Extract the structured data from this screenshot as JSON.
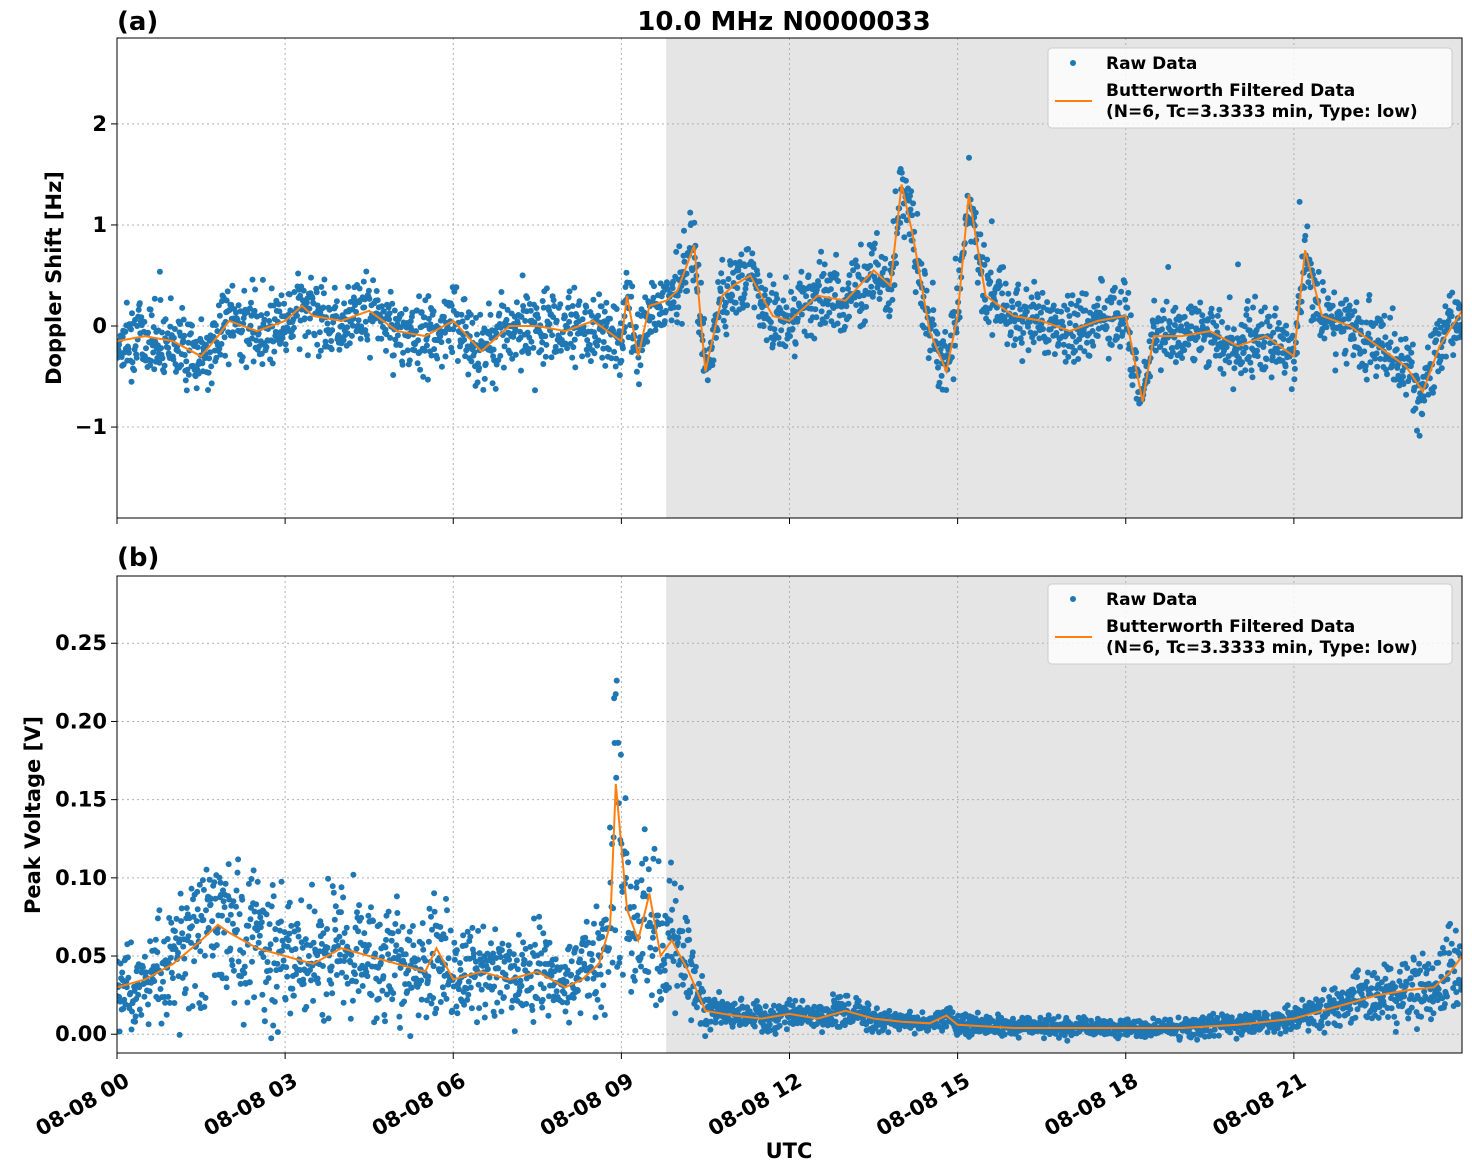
{
  "chart_data": [
    {
      "type": "scatter",
      "panel_label": "(a)",
      "title": "10.0 MHz N0000033",
      "ylabel": "Doppler Shift [Hz]",
      "xlabel": "",
      "xlim_hours": [
        0,
        24
      ],
      "ylim": [
        -1.9,
        2.85
      ],
      "yticks": [
        -1,
        0,
        1,
        2
      ],
      "ytick_labels": [
        "−1",
        "0",
        "1",
        "2"
      ],
      "grid": true,
      "legend_position": "top-right",
      "night_shading_hours": [
        9.8,
        24
      ],
      "series": [
        {
          "name": "Raw Data",
          "kind": "scatter",
          "color": "#1f77b4"
        },
        {
          "name": "Butterworth Filtered Data",
          "name_line2": "(N=6, Tc=3.3333 min, Type: low)",
          "kind": "line",
          "color": "#ff7f0e",
          "x_hours": [
            0,
            0.5,
            1,
            1.5,
            1.8,
            2,
            2.5,
            3,
            3.3,
            3.5,
            4,
            4.5,
            5,
            5.5,
            6,
            6.5,
            7,
            7.5,
            8,
            8.5,
            9,
            9.1,
            9.3,
            9.5,
            9.8,
            10,
            10.3,
            10.5,
            10.8,
            11,
            11.3,
            11.7,
            12,
            12.5,
            13,
            13.5,
            13.8,
            14,
            14.2,
            14.5,
            14.8,
            15,
            15.2,
            15.5,
            16,
            16.5,
            17,
            17.5,
            18,
            18.3,
            18.5,
            19,
            19.5,
            20,
            20.5,
            21,
            21.2,
            21.5,
            22,
            22.5,
            23,
            23.3,
            23.6,
            24
          ],
          "values": [
            -0.15,
            -0.1,
            -0.15,
            -0.3,
            -0.1,
            0.05,
            -0.05,
            0.05,
            0.2,
            0.1,
            0.05,
            0.15,
            -0.05,
            -0.1,
            0.05,
            -0.25,
            0,
            0,
            -0.05,
            0.05,
            -0.15,
            0.3,
            -0.3,
            0.2,
            0.25,
            0.35,
            0.8,
            -0.45,
            0.3,
            0.4,
            0.5,
            0.1,
            0.05,
            0.3,
            0.25,
            0.55,
            0.4,
            1.4,
            0.9,
            -0.05,
            -0.45,
            0.1,
            1.3,
            0.3,
            0.1,
            0.05,
            -0.05,
            0.05,
            0.1,
            -0.75,
            -0.1,
            -0.1,
            -0.05,
            -0.2,
            -0.1,
            -0.3,
            0.75,
            0.1,
            0,
            -0.2,
            -0.4,
            -0.65,
            -0.2,
            0.15
          ]
        }
      ],
      "x_tick_hours": [
        0,
        3,
        6,
        9,
        12,
        15,
        18,
        21
      ]
    },
    {
      "type": "scatter",
      "panel_label": "(b)",
      "title": "",
      "ylabel": "Peak Voltage [V]",
      "xlabel": "UTC",
      "xlim_hours": [
        0,
        24
      ],
      "ylim": [
        -0.012,
        0.293
      ],
      "yticks": [
        0,
        0.05,
        0.1,
        0.15,
        0.2,
        0.25
      ],
      "ytick_labels": [
        "0.00",
        "0.05",
        "0.10",
        "0.15",
        "0.20",
        "0.25"
      ],
      "grid": true,
      "legend_position": "top-right",
      "night_shading_hours": [
        9.8,
        24
      ],
      "x_tick_hours": [
        0,
        3,
        6,
        9,
        12,
        15,
        18,
        21
      ],
      "x_tick_labels": [
        "08-08 00",
        "08-08 03",
        "08-08 06",
        "08-08 09",
        "08-08 12",
        "08-08 15",
        "08-08 18",
        "08-08 21"
      ],
      "series": [
        {
          "name": "Raw Data",
          "kind": "scatter",
          "color": "#1f77b4"
        },
        {
          "name": "Butterworth Filtered Data",
          "name_line2": "(N=6, Tc=3.3333 min, Type: low)",
          "kind": "line",
          "color": "#ff7f0e",
          "x_hours": [
            0,
            0.5,
            1,
            1.5,
            1.8,
            2,
            2.5,
            3,
            3.5,
            4,
            4.5,
            5,
            5.5,
            5.7,
            6,
            6.5,
            7,
            7.5,
            8,
            8.3,
            8.6,
            8.8,
            8.9,
            9.1,
            9.3,
            9.5,
            9.7,
            9.9,
            10.2,
            10.5,
            11,
            11.5,
            12,
            12.5,
            13,
            13.5,
            14,
            14.5,
            14.8,
            15,
            15.5,
            16,
            16.5,
            17,
            17.5,
            18,
            18.5,
            19,
            19.5,
            20,
            20.5,
            21,
            21.5,
            22,
            22.5,
            23,
            23.5,
            23.8,
            24
          ],
          "values": [
            0.03,
            0.035,
            0.045,
            0.06,
            0.07,
            0.065,
            0.055,
            0.05,
            0.045,
            0.055,
            0.05,
            0.045,
            0.04,
            0.055,
            0.035,
            0.04,
            0.035,
            0.04,
            0.03,
            0.035,
            0.045,
            0.07,
            0.16,
            0.08,
            0.06,
            0.09,
            0.05,
            0.06,
            0.04,
            0.015,
            0.012,
            0.01,
            0.013,
            0.01,
            0.015,
            0.01,
            0.008,
            0.007,
            0.012,
            0.006,
            0.005,
            0.004,
            0.004,
            0.004,
            0.004,
            0.004,
            0.004,
            0.004,
            0.005,
            0.006,
            0.008,
            0.01,
            0.015,
            0.02,
            0.025,
            0.028,
            0.03,
            0.04,
            0.05
          ]
        }
      ]
    }
  ]
}
